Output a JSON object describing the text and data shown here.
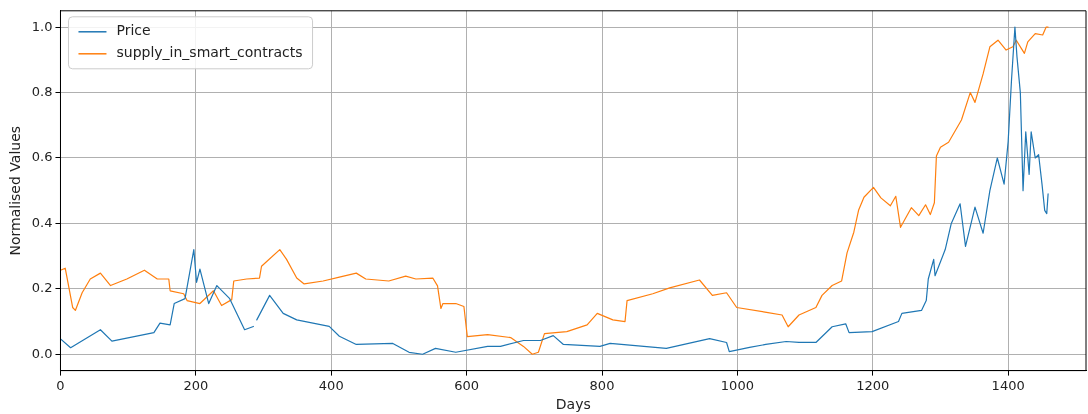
{
  "chart_data": {
    "type": "line",
    "xlabel": "Days",
    "ylabel": "Normalised Values",
    "xlim": [
      0,
      1515
    ],
    "ylim": [
      -0.05,
      1.05
    ],
    "xticks": [
      0,
      200,
      400,
      600,
      800,
      1000,
      1200,
      1400
    ],
    "yticks": [
      {
        "value": 0,
        "label": "0.0"
      },
      {
        "value": 0.2,
        "label": "0.2"
      },
      {
        "value": 0.4,
        "label": "0.4"
      },
      {
        "value": 0.6,
        "label": "0.6"
      },
      {
        "value": 0.8,
        "label": "0.8"
      },
      {
        "value": 1,
        "label": "1.0"
      }
    ],
    "grid": true,
    "legend": "top left",
    "marker": "none",
    "line_style": "solid",
    "series": [
      {
        "name": "Price",
        "color": "#1f77b4",
        "x": [
          0,
          15,
          59,
          76,
          138,
          147,
          162,
          168,
          184,
          197,
          201,
          206,
          219,
          231,
          250,
          272,
          285,
          287,
          290,
          309,
          329,
          349,
          397,
          412,
          437,
          491,
          515,
          535,
          554,
          584,
          631,
          650,
          684,
          709,
          728,
          743,
          797,
          812,
          895,
          959,
          984,
          988,
          1018,
          1042,
          1072,
          1091,
          1116,
          1140,
          1160,
          1165,
          1199,
          1238,
          1243,
          1272,
          1279,
          1282,
          1290,
          1292,
          1307,
          1316,
          1329,
          1337,
          1351,
          1363,
          1373,
          1384,
          1394,
          1400,
          1405,
          1410,
          1413,
          1418,
          1422,
          1426,
          1431,
          1434,
          1440,
          1445,
          1450,
          1454,
          1457,
          1459
        ],
        "values": [
          0.047,
          0.02,
          0.075,
          0.04,
          0.066,
          0.095,
          0.09,
          0.155,
          0.17,
          0.32,
          0.22,
          0.26,
          0.155,
          0.21,
          0.17,
          0.075,
          0.085,
          null,
          0.105,
          0.18,
          0.125,
          0.105,
          0.085,
          0.055,
          0.03,
          0.033,
          0.006,
          0,
          0.018,
          0.006,
          0.024,
          0.024,
          0.042,
          0.042,
          0.057,
          0.03,
          0.024,
          0.033,
          0.018,
          0.048,
          0.036,
          0.008,
          0.021,
          0.03,
          0.039,
          0.036,
          0.036,
          0.084,
          0.093,
          0.066,
          0.069,
          0.1,
          0.125,
          0.134,
          0.164,
          0.23,
          0.29,
          0.24,
          0.32,
          0.4,
          0.46,
          0.33,
          0.45,
          0.37,
          0.5,
          0.6,
          0.52,
          0.65,
          0.84,
          1.0,
          0.91,
          0.8,
          0.5,
          0.68,
          0.55,
          0.68,
          0.6,
          0.61,
          0.52,
          0.44,
          0.43,
          0.49
        ]
      },
      {
        "name": "supply_in_smart_contracts",
        "color": "#ff7f0e",
        "x": [
          0,
          7,
          18,
          22,
          32,
          44,
          59,
          74,
          98,
          124,
          143,
          160,
          162,
          182,
          187,
          206,
          226,
          238,
          253,
          256,
          275,
          294,
          297,
          324,
          334,
          349,
          360,
          388,
          412,
          437,
          451,
          485,
          510,
          525,
          550,
          557,
          562,
          565,
          584,
          596,
          601,
          631,
          665,
          684,
          697,
          706,
          715,
          748,
          778,
          793,
          816,
          834,
          837,
          875,
          900,
          944,
          963,
          984,
          999,
          1043,
          1066,
          1075,
          1091,
          1116,
          1125,
          1140,
          1154,
          1162,
          1172,
          1179,
          1187,
          1201,
          1212,
          1226,
          1234,
          1241,
          1257,
          1268,
          1278,
          1285,
          1291,
          1294,
          1300,
          1312,
          1331,
          1344,
          1351,
          1363,
          1373,
          1385,
          1397,
          1407,
          1412,
          1424,
          1429,
          1440,
          1451,
          1456,
          1459
        ],
        "values": [
          0.257,
          0.263,
          0.143,
          0.134,
          0.188,
          0.23,
          0.248,
          0.21,
          0.23,
          0.257,
          0.23,
          0.23,
          0.194,
          0.185,
          0.164,
          0.155,
          0.194,
          0.149,
          0.167,
          0.224,
          0.23,
          0.233,
          0.269,
          0.32,
          0.29,
          0.233,
          0.215,
          0.224,
          0.236,
          0.248,
          0.23,
          0.224,
          0.239,
          0.23,
          0.233,
          0.209,
          0.14,
          0.155,
          0.155,
          0.146,
          0.054,
          0.06,
          0.051,
          0.024,
          0,
          0.006,
          0.063,
          0.069,
          0.09,
          0.125,
          0.105,
          0.1,
          0.164,
          0.185,
          0.203,
          0.227,
          0.18,
          0.188,
          0.143,
          0.128,
          0.12,
          0.084,
          0.12,
          0.143,
          0.18,
          0.21,
          0.224,
          0.31,
          0.373,
          0.44,
          0.48,
          0.51,
          0.478,
          0.454,
          0.483,
          0.388,
          0.448,
          0.424,
          0.457,
          0.427,
          0.463,
          0.606,
          0.633,
          0.648,
          0.716,
          0.8,
          0.77,
          0.857,
          0.94,
          0.96,
          0.93,
          0.94,
          0.96,
          0.92,
          0.955,
          0.98,
          0.976,
          1.0,
          1.0
        ]
      }
    ]
  }
}
